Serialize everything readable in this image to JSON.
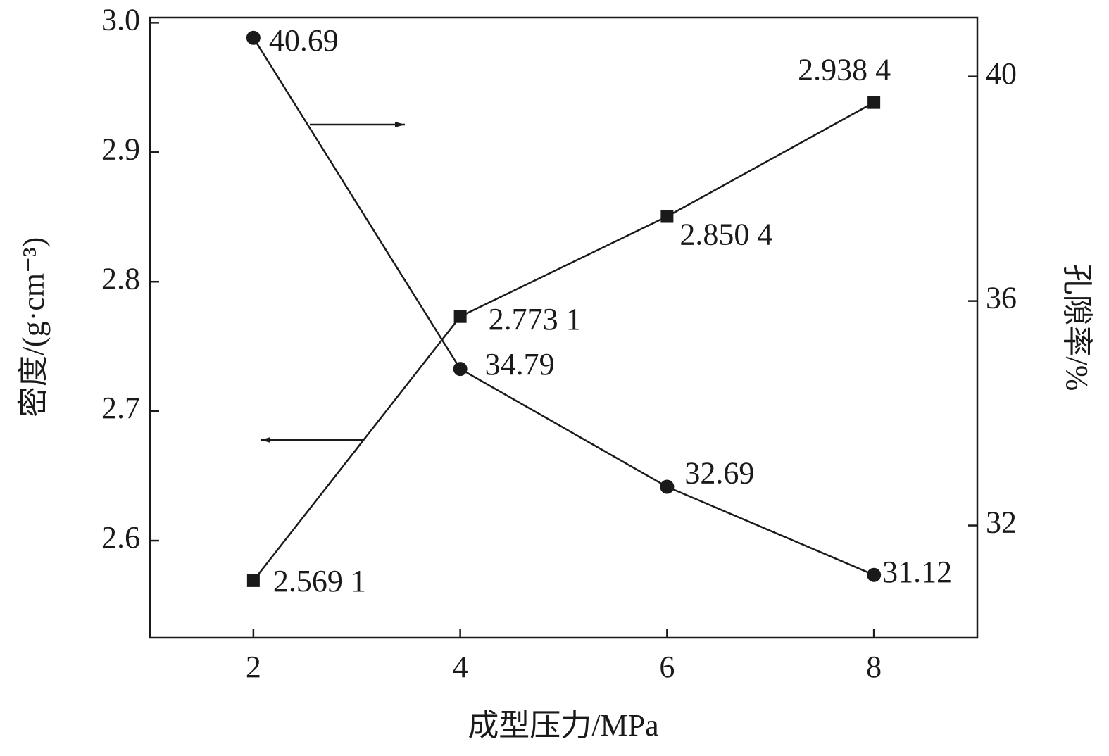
{
  "chart_data": {
    "type": "line",
    "x_label": "成型压力/MPa",
    "y_label": "密度/(g·cm⁻³)",
    "y2_label": "孔隙率/%",
    "x": [
      2,
      4,
      6,
      8
    ],
    "xlim": [
      1,
      9
    ],
    "xticks": [
      2,
      4,
      6,
      8
    ],
    "ylim": [
      2.525,
      3.004
    ],
    "yticks": [
      {
        "value": 2.6,
        "label": "2.6"
      },
      {
        "value": 2.7,
        "label": "2.7"
      },
      {
        "value": 2.8,
        "label": "2.8"
      },
      {
        "value": 2.9,
        "label": "2.9"
      },
      {
        "value": 3.0,
        "label": "3.0"
      }
    ],
    "y2lim": [
      30,
      41.05
    ],
    "y2ticks": [
      32,
      36,
      40
    ],
    "grid": false,
    "series": [
      {
        "name": "密度",
        "color": "#1a1a1a",
        "marker": "square",
        "values": [
          2.5691,
          2.7731,
          2.8504,
          2.9384
        ],
        "value_labels": [
          "2.569 1",
          "2.773 1",
          "2.850 4",
          "2.938 4"
        ]
      },
      {
        "name": "孔隙率",
        "color": "#1a1a1a",
        "marker": "circle",
        "axis": "y2",
        "values": [
          40.69,
          34.79,
          32.69,
          31.12
        ]
      }
    ]
  }
}
